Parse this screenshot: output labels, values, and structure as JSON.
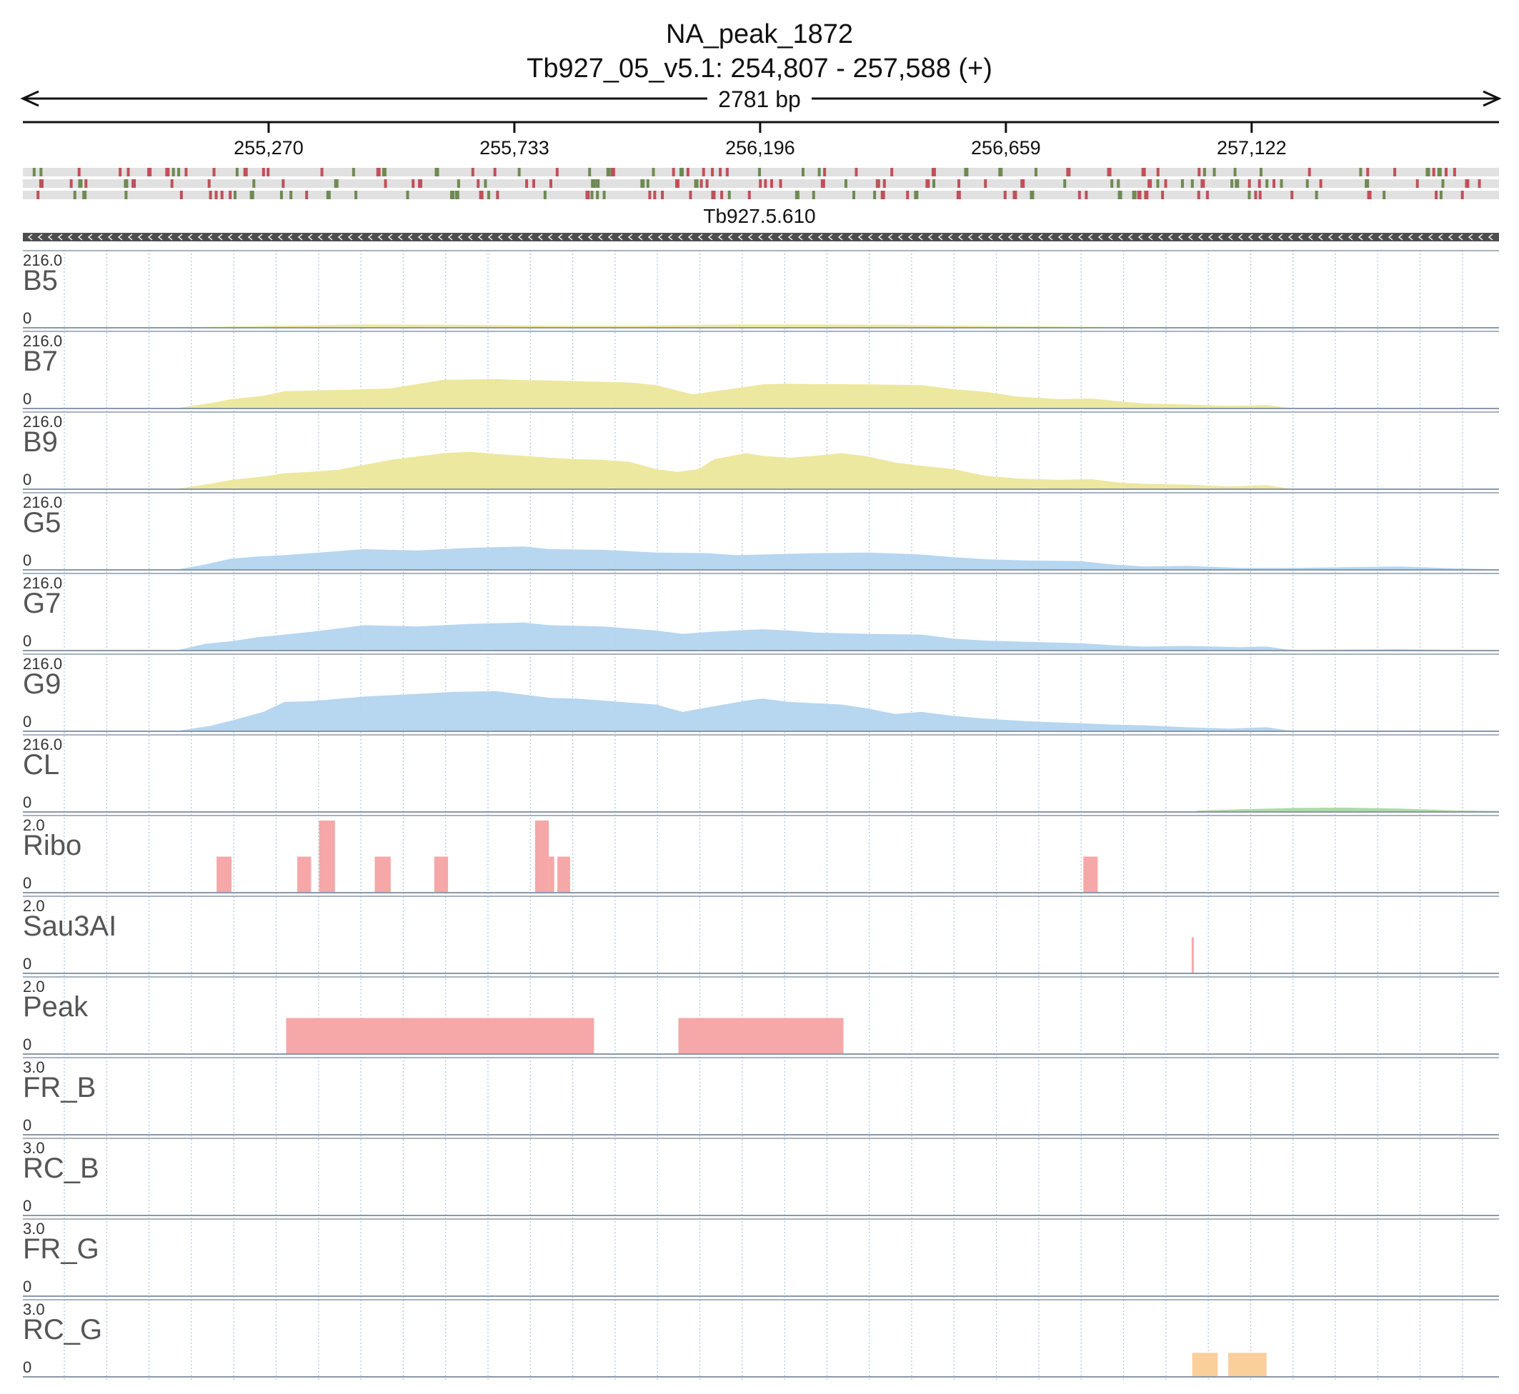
{
  "chart_data": {
    "type": "area",
    "title": "NA_peak_1872",
    "subtitle": "Tb927_05_v5.1: 254,807 - 257,588 (+)",
    "span_label": "2781 bp",
    "xlim": [
      254807,
      257588
    ],
    "x_ticks": [
      255270,
      255733,
      256196,
      256659,
      257122
    ],
    "x_tick_labels": [
      "255,270",
      "255,733",
      "256,196",
      "256,659",
      "257,122"
    ],
    "gene": {
      "name": "Tb927.5.610",
      "start": 254807,
      "end": 257588,
      "strand": "-"
    },
    "grid": true,
    "colors": {
      "yellow": "#ece79a",
      "blue": "#b3d4ef",
      "green": "#a9d9a0",
      "red": "#f6a7a7",
      "orange": "#fbcf9a",
      "axis": "#8b98a8",
      "gene": "#4d4d4d",
      "mut_red": "#c0505a",
      "mut_green": "#6e8a52"
    },
    "tracks": [
      {
        "name": "B5",
        "max_label": "216.0",
        "min_label": "0",
        "ylim": [
          0,
          216
        ],
        "color": "yellow",
        "points": [
          [
            254807,
            0
          ],
          [
            255100,
            0
          ],
          [
            255130,
            2
          ],
          [
            255200,
            4
          ],
          [
            255300,
            6
          ],
          [
            255450,
            10
          ],
          [
            255600,
            9
          ],
          [
            255700,
            8
          ],
          [
            255800,
            6
          ],
          [
            255950,
            6
          ],
          [
            256050,
            8
          ],
          [
            256150,
            10
          ],
          [
            256300,
            10
          ],
          [
            256450,
            9
          ],
          [
            256600,
            6
          ],
          [
            256750,
            4
          ],
          [
            256900,
            2
          ],
          [
            257000,
            1
          ],
          [
            257100,
            0
          ],
          [
            257588,
            0
          ]
        ]
      },
      {
        "name": "B7",
        "max_label": "216.0",
        "min_label": "0",
        "ylim": [
          0,
          216
        ],
        "color": "yellow",
        "points": [
          [
            254807,
            0
          ],
          [
            255090,
            0
          ],
          [
            255100,
            2
          ],
          [
            255160,
            16
          ],
          [
            255200,
            28
          ],
          [
            255260,
            38
          ],
          [
            255300,
            52
          ],
          [
            255350,
            54
          ],
          [
            255420,
            56
          ],
          [
            255500,
            60
          ],
          [
            255600,
            86
          ],
          [
            255700,
            88
          ],
          [
            255750,
            85
          ],
          [
            255800,
            84
          ],
          [
            255850,
            82
          ],
          [
            255950,
            78
          ],
          [
            256000,
            70
          ],
          [
            256070,
            42
          ],
          [
            256110,
            52
          ],
          [
            256150,
            60
          ],
          [
            256200,
            72
          ],
          [
            256250,
            74
          ],
          [
            256300,
            73
          ],
          [
            256400,
            72
          ],
          [
            256500,
            70
          ],
          [
            256560,
            58
          ],
          [
            256620,
            50
          ],
          [
            256680,
            36
          ],
          [
            256760,
            28
          ],
          [
            256820,
            30
          ],
          [
            256870,
            22
          ],
          [
            256920,
            15
          ],
          [
            257000,
            12
          ],
          [
            257080,
            8
          ],
          [
            257150,
            10
          ],
          [
            257190,
            3
          ],
          [
            257210,
            0
          ],
          [
            257588,
            0
          ]
        ]
      },
      {
        "name": "B9",
        "max_label": "216.0",
        "min_label": "0",
        "ylim": [
          0,
          216
        ],
        "color": "yellow",
        "points": [
          [
            254807,
            0
          ],
          [
            255090,
            0
          ],
          [
            255100,
            2
          ],
          [
            255160,
            16
          ],
          [
            255200,
            28
          ],
          [
            255260,
            38
          ],
          [
            255300,
            48
          ],
          [
            255350,
            52
          ],
          [
            255400,
            58
          ],
          [
            255500,
            88
          ],
          [
            255600,
            108
          ],
          [
            255650,
            112
          ],
          [
            255700,
            105
          ],
          [
            255750,
            100
          ],
          [
            255800,
            94
          ],
          [
            255850,
            90
          ],
          [
            255900,
            88
          ],
          [
            255950,
            82
          ],
          [
            256000,
            60
          ],
          [
            256040,
            52
          ],
          [
            256080,
            60
          ],
          [
            256110,
            90
          ],
          [
            256170,
            108
          ],
          [
            256200,
            100
          ],
          [
            256250,
            94
          ],
          [
            256300,
            100
          ],
          [
            256350,
            108
          ],
          [
            256400,
            98
          ],
          [
            256450,
            80
          ],
          [
            256500,
            70
          ],
          [
            256560,
            60
          ],
          [
            256620,
            40
          ],
          [
            256680,
            32
          ],
          [
            256760,
            28
          ],
          [
            256820,
            30
          ],
          [
            256870,
            20
          ],
          [
            256920,
            16
          ],
          [
            257000,
            14
          ],
          [
            257080,
            8
          ],
          [
            257150,
            12
          ],
          [
            257190,
            3
          ],
          [
            257210,
            0
          ],
          [
            257588,
            0
          ]
        ]
      },
      {
        "name": "G5",
        "max_label": "216.0",
        "min_label": "0",
        "ylim": [
          0,
          216
        ],
        "color": "blue",
        "points": [
          [
            254807,
            0
          ],
          [
            255090,
            0
          ],
          [
            255100,
            2
          ],
          [
            255150,
            16
          ],
          [
            255200,
            34
          ],
          [
            255250,
            40
          ],
          [
            255300,
            44
          ],
          [
            255350,
            50
          ],
          [
            255450,
            62
          ],
          [
            255550,
            58
          ],
          [
            255650,
            66
          ],
          [
            255750,
            70
          ],
          [
            255800,
            62
          ],
          [
            255900,
            60
          ],
          [
            256000,
            52
          ],
          [
            256100,
            50
          ],
          [
            256150,
            44
          ],
          [
            256200,
            46
          ],
          [
            256300,
            50
          ],
          [
            256400,
            52
          ],
          [
            256500,
            46
          ],
          [
            256560,
            38
          ],
          [
            256620,
            32
          ],
          [
            256700,
            28
          ],
          [
            256800,
            26
          ],
          [
            256860,
            16
          ],
          [
            256920,
            10
          ],
          [
            257000,
            12
          ],
          [
            257100,
            6
          ],
          [
            257200,
            6
          ],
          [
            257250,
            7
          ],
          [
            257300,
            8
          ],
          [
            257400,
            10
          ],
          [
            257500,
            5
          ],
          [
            257588,
            2
          ]
        ]
      },
      {
        "name": "G7",
        "max_label": "216.0",
        "min_label": "0",
        "ylim": [
          0,
          216
        ],
        "color": "blue",
        "points": [
          [
            254807,
            0
          ],
          [
            255090,
            0
          ],
          [
            255100,
            2
          ],
          [
            255150,
            20
          ],
          [
            255200,
            28
          ],
          [
            255250,
            40
          ],
          [
            255300,
            48
          ],
          [
            255350,
            56
          ],
          [
            255450,
            76
          ],
          [
            255550,
            72
          ],
          [
            255650,
            80
          ],
          [
            255750,
            84
          ],
          [
            255800,
            76
          ],
          [
            255900,
            72
          ],
          [
            256000,
            60
          ],
          [
            256050,
            50
          ],
          [
            256100,
            56
          ],
          [
            256150,
            60
          ],
          [
            256200,
            64
          ],
          [
            256250,
            60
          ],
          [
            256300,
            54
          ],
          [
            256400,
            50
          ],
          [
            256500,
            48
          ],
          [
            256560,
            36
          ],
          [
            256620,
            30
          ],
          [
            256700,
            26
          ],
          [
            256800,
            22
          ],
          [
            256860,
            16
          ],
          [
            256920,
            12
          ],
          [
            257000,
            14
          ],
          [
            257100,
            10
          ],
          [
            257150,
            12
          ],
          [
            257190,
            3
          ],
          [
            257210,
            2
          ],
          [
            257300,
            3
          ],
          [
            257400,
            4
          ],
          [
            257500,
            2
          ],
          [
            257588,
            1
          ]
        ]
      },
      {
        "name": "G9",
        "max_label": "216.0",
        "min_label": "0",
        "ylim": [
          0,
          216
        ],
        "color": "blue",
        "points": [
          [
            254807,
            0
          ],
          [
            255090,
            0
          ],
          [
            255100,
            2
          ],
          [
            255160,
            16
          ],
          [
            255200,
            32
          ],
          [
            255260,
            58
          ],
          [
            255300,
            88
          ],
          [
            255350,
            90
          ],
          [
            255450,
            104
          ],
          [
            255550,
            112
          ],
          [
            255620,
            118
          ],
          [
            255700,
            120
          ],
          [
            255750,
            110
          ],
          [
            255800,
            100
          ],
          [
            255850,
            98
          ],
          [
            255900,
            92
          ],
          [
            256000,
            80
          ],
          [
            256050,
            58
          ],
          [
            256110,
            75
          ],
          [
            256170,
            92
          ],
          [
            256200,
            98
          ],
          [
            256250,
            88
          ],
          [
            256300,
            84
          ],
          [
            256350,
            80
          ],
          [
            256400,
            68
          ],
          [
            256450,
            52
          ],
          [
            256500,
            58
          ],
          [
            256560,
            46
          ],
          [
            256620,
            38
          ],
          [
            256700,
            30
          ],
          [
            256800,
            24
          ],
          [
            256860,
            20
          ],
          [
            256920,
            18
          ],
          [
            257000,
            12
          ],
          [
            257080,
            8
          ],
          [
            257150,
            12
          ],
          [
            257190,
            3
          ],
          [
            257210,
            2
          ],
          [
            257588,
            1
          ]
        ]
      },
      {
        "name": "CL",
        "max_label": "216.0",
        "min_label": "0",
        "ylim": [
          0,
          216
        ],
        "color": "green",
        "points": [
          [
            254807,
            0
          ],
          [
            257010,
            0
          ],
          [
            257020,
            4
          ],
          [
            257100,
            8
          ],
          [
            257200,
            12
          ],
          [
            257300,
            13
          ],
          [
            257400,
            10
          ],
          [
            257500,
            5
          ],
          [
            257588,
            3
          ]
        ]
      },
      {
        "name": "Ribo",
        "max_label": "2.0",
        "min_label": "0",
        "ylim": [
          0,
          2
        ],
        "color": "red",
        "bars": [
          [
            255172,
            255200,
            1
          ],
          [
            255324,
            255350,
            1
          ],
          [
            255365,
            255395,
            2
          ],
          [
            255470,
            255500,
            1
          ],
          [
            255582,
            255608,
            1
          ],
          [
            255772,
            255798,
            2
          ],
          [
            255798,
            255808,
            1
          ],
          [
            255814,
            255838,
            1
          ],
          [
            256805,
            256832,
            1
          ]
        ]
      },
      {
        "name": "Sau3AI",
        "max_label": "2.0",
        "min_label": "0",
        "ylim": [
          0,
          2
        ],
        "color": "red",
        "bars": [
          [
            257009,
            257013,
            1
          ]
        ]
      },
      {
        "name": "Peak",
        "max_label": "2.0",
        "min_label": "0",
        "ylim": [
          0,
          2
        ],
        "color": "red",
        "bars": [
          [
            255303,
            255883,
            1
          ],
          [
            256042,
            256353,
            1
          ]
        ]
      },
      {
        "name": "FR_B",
        "max_label": "3.0",
        "min_label": "0",
        "ylim": [
          0,
          3
        ],
        "color": "red",
        "bars": []
      },
      {
        "name": "RC_B",
        "max_label": "3.0",
        "min_label": "0",
        "ylim": [
          0,
          3
        ],
        "color": "red",
        "bars": []
      },
      {
        "name": "FR_G",
        "max_label": "3.0",
        "min_label": "0",
        "ylim": [
          0,
          3
        ],
        "color": "red",
        "bars": []
      },
      {
        "name": "RC_G",
        "max_label": "3.0",
        "min_label": "0",
        "ylim": [
          0,
          3
        ],
        "color": "orange",
        "bars": [
          [
            257010,
            257058,
            1
          ],
          [
            257078,
            257150,
            1
          ]
        ]
      }
    ]
  }
}
